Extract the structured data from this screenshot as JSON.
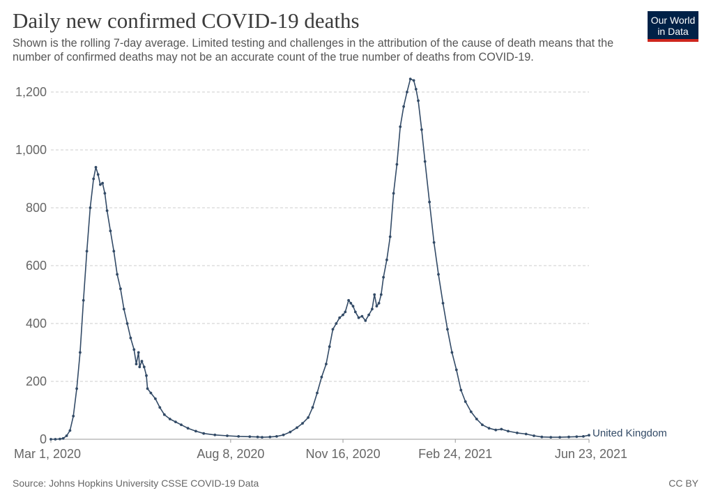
{
  "header": {
    "title": "Daily new confirmed COVID-19 deaths",
    "subtitle": "Shown is the rolling 7-day average. Limited testing and challenges in the attribution of the cause of death means that the number of confirmed deaths may not be an accurate count of the true number of deaths from COVID-19."
  },
  "logo": {
    "line1": "Our World",
    "line2": "in Data"
  },
  "footer": {
    "source": "Source: Johns Hopkins University CSSE COVID-19 Data",
    "license": "CC BY"
  },
  "colors": {
    "series": "#324a66",
    "grid": "#cccccc",
    "logo_bg": "#002147",
    "logo_accent": "#ce261e"
  },
  "chart_data": {
    "type": "line",
    "title": "Daily new confirmed COVID-19 deaths",
    "xlabel": "",
    "ylabel": "",
    "x_ticks": [
      "Mar 1, 2020",
      "Aug 8, 2020",
      "Nov 16, 2020",
      "Feb 24, 2021",
      "Jun 23, 2021"
    ],
    "y_ticks": [
      0,
      200,
      400,
      600,
      800,
      1000,
      1200
    ],
    "ylim": [
      0,
      1260
    ],
    "xlim": [
      "2020-03-01",
      "2021-06-23"
    ],
    "grid": "horizontal dashed",
    "series": [
      {
        "name": "United Kingdom",
        "points": [
          [
            "2020-03-01",
            0
          ],
          [
            "2020-03-05",
            0
          ],
          [
            "2020-03-09",
            1
          ],
          [
            "2020-03-12",
            3
          ],
          [
            "2020-03-15",
            12
          ],
          [
            "2020-03-18",
            30
          ],
          [
            "2020-03-21",
            80
          ],
          [
            "2020-03-24",
            175
          ],
          [
            "2020-03-27",
            300
          ],
          [
            "2020-03-30",
            480
          ],
          [
            "2020-04-02",
            650
          ],
          [
            "2020-04-05",
            800
          ],
          [
            "2020-04-08",
            900
          ],
          [
            "2020-04-10",
            940
          ],
          [
            "2020-04-12",
            915
          ],
          [
            "2020-04-14",
            880
          ],
          [
            "2020-04-16",
            885
          ],
          [
            "2020-04-18",
            850
          ],
          [
            "2020-04-20",
            790
          ],
          [
            "2020-04-23",
            720
          ],
          [
            "2020-04-26",
            650
          ],
          [
            "2020-04-29",
            570
          ],
          [
            "2020-05-02",
            520
          ],
          [
            "2020-05-05",
            450
          ],
          [
            "2020-05-08",
            400
          ],
          [
            "2020-05-11",
            350
          ],
          [
            "2020-05-14",
            310
          ],
          [
            "2020-05-16",
            260
          ],
          [
            "2020-05-18",
            300
          ],
          [
            "2020-05-19",
            250
          ],
          [
            "2020-05-21",
            270
          ],
          [
            "2020-05-23",
            250
          ],
          [
            "2020-05-25",
            220
          ],
          [
            "2020-05-26",
            175
          ],
          [
            "2020-05-29",
            160
          ],
          [
            "2020-06-02",
            140
          ],
          [
            "2020-06-06",
            110
          ],
          [
            "2020-06-10",
            85
          ],
          [
            "2020-06-15",
            70
          ],
          [
            "2020-06-20",
            60
          ],
          [
            "2020-06-25",
            50
          ],
          [
            "2020-07-01",
            38
          ],
          [
            "2020-07-08",
            28
          ],
          [
            "2020-07-15",
            20
          ],
          [
            "2020-07-25",
            15
          ],
          [
            "2020-08-05",
            12
          ],
          [
            "2020-08-15",
            10
          ],
          [
            "2020-08-25",
            9
          ],
          [
            "2020-09-01",
            8
          ],
          [
            "2020-09-05",
            7
          ],
          [
            "2020-09-12",
            8
          ],
          [
            "2020-09-18",
            10
          ],
          [
            "2020-09-24",
            15
          ],
          [
            "2020-09-30",
            25
          ],
          [
            "2020-10-06",
            40
          ],
          [
            "2020-10-11",
            55
          ],
          [
            "2020-10-16",
            75
          ],
          [
            "2020-10-20",
            110
          ],
          [
            "2020-10-24",
            160
          ],
          [
            "2020-10-28",
            215
          ],
          [
            "2020-11-01",
            260
          ],
          [
            "2020-11-04",
            320
          ],
          [
            "2020-11-07",
            380
          ],
          [
            "2020-11-10",
            400
          ],
          [
            "2020-11-13",
            420
          ],
          [
            "2020-11-16",
            430
          ],
          [
            "2020-11-18",
            440
          ],
          [
            "2020-11-21",
            480
          ],
          [
            "2020-11-23",
            470
          ],
          [
            "2020-11-25",
            460
          ],
          [
            "2020-11-27",
            440
          ],
          [
            "2020-11-30",
            420
          ],
          [
            "2020-12-03",
            425
          ],
          [
            "2020-12-06",
            410
          ],
          [
            "2020-12-09",
            430
          ],
          [
            "2020-12-12",
            450
          ],
          [
            "2020-12-14",
            500
          ],
          [
            "2020-12-16",
            460
          ],
          [
            "2020-12-18",
            470
          ],
          [
            "2020-12-20",
            500
          ],
          [
            "2020-12-22",
            560
          ],
          [
            "2020-12-25",
            620
          ],
          [
            "2020-12-28",
            700
          ],
          [
            "2020-12-31",
            850
          ],
          [
            "2021-01-03",
            950
          ],
          [
            "2021-01-06",
            1080
          ],
          [
            "2021-01-09",
            1150
          ],
          [
            "2021-01-12",
            1200
          ],
          [
            "2021-01-15",
            1245
          ],
          [
            "2021-01-18",
            1240
          ],
          [
            "2021-01-20",
            1210
          ],
          [
            "2021-01-22",
            1170
          ],
          [
            "2021-01-25",
            1070
          ],
          [
            "2021-01-28",
            960
          ],
          [
            "2021-02-01",
            820
          ],
          [
            "2021-02-05",
            680
          ],
          [
            "2021-02-09",
            570
          ],
          [
            "2021-02-13",
            470
          ],
          [
            "2021-02-17",
            380
          ],
          [
            "2021-02-21",
            300
          ],
          [
            "2021-02-25",
            240
          ],
          [
            "2021-03-01",
            170
          ],
          [
            "2021-03-05",
            130
          ],
          [
            "2021-03-10",
            95
          ],
          [
            "2021-03-15",
            70
          ],
          [
            "2021-03-20",
            50
          ],
          [
            "2021-03-26",
            38
          ],
          [
            "2021-04-01",
            32
          ],
          [
            "2021-04-06",
            35
          ],
          [
            "2021-04-12",
            28
          ],
          [
            "2021-04-20",
            22
          ],
          [
            "2021-04-28",
            18
          ],
          [
            "2021-05-05",
            12
          ],
          [
            "2021-05-12",
            8
          ],
          [
            "2021-05-20",
            7
          ],
          [
            "2021-05-28",
            7
          ],
          [
            "2021-06-05",
            8
          ],
          [
            "2021-06-12",
            9
          ],
          [
            "2021-06-18",
            10
          ],
          [
            "2021-06-23",
            14
          ]
        ]
      }
    ]
  }
}
